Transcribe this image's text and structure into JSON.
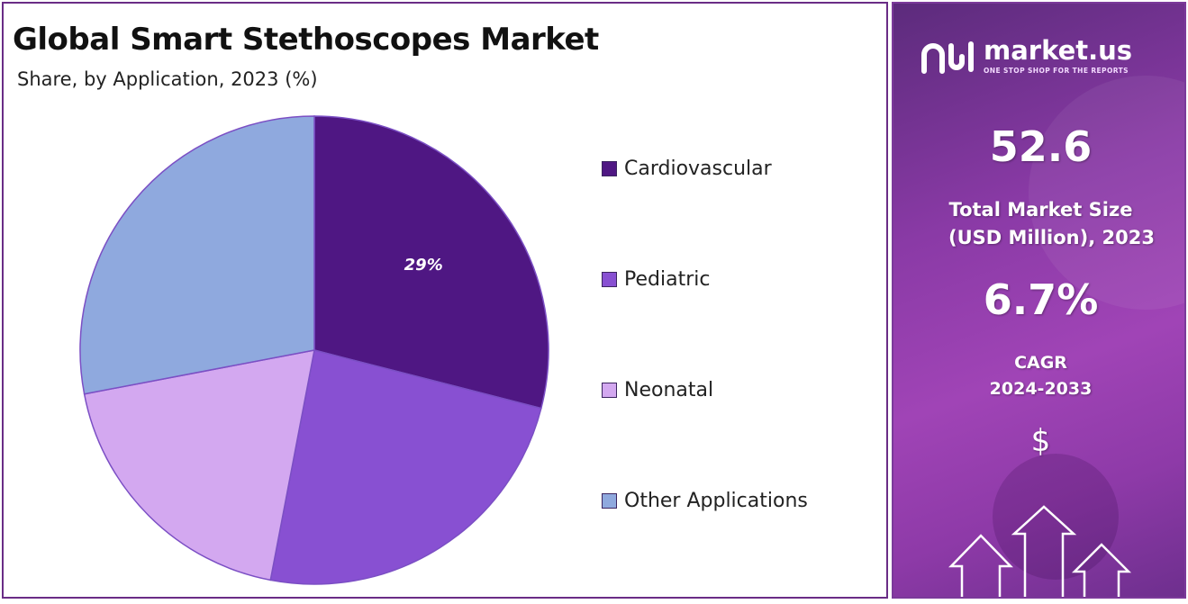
{
  "header": {
    "title": "Global Smart Stethoscopes Market",
    "subtitle": "Share, by Application, 2023 (%)"
  },
  "chart_data": {
    "type": "pie",
    "categories": [
      "Cardiovascular",
      "Pediatric",
      "Neonatal",
      "Other Applications"
    ],
    "values": [
      29,
      24,
      19,
      28
    ],
    "data_labels": [
      "29%",
      "",
      "",
      ""
    ],
    "colors": [
      "#4f1783",
      "#8850d2",
      "#d3a8f0",
      "#8fa9de"
    ],
    "legend_position": "right"
  },
  "brand": {
    "name": "market.us",
    "tagline": "ONE STOP SHOP FOR THE REPORTS",
    "icon": "market-us-logo-icon"
  },
  "stats": {
    "market_size_value": "52.6",
    "market_size_label_line1": "Total Market Size",
    "market_size_label_line2": "(USD Million), 2023",
    "cagr_value": "6.7%",
    "cagr_label_line1": "CAGR",
    "cagr_label_line2": "2024-2033",
    "currency_symbol": "$"
  },
  "colors": {
    "panel_border": "#6a2d86",
    "side_panel_accent": "#a044b6"
  }
}
